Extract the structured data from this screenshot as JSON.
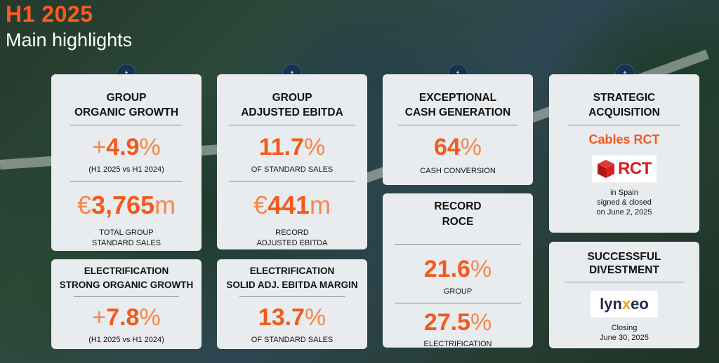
{
  "header": {
    "title": "H1 2025",
    "subtitle": "Main highlights"
  },
  "cards": {
    "organic_growth": {
      "title_line1": "GROUP",
      "title_line2": "ORGANIC GROWTH",
      "value1_prefix": "+",
      "value1": "4.9",
      "value1_unit": "%",
      "caption1": "(H1 2025 vs H1 2024)",
      "value2_prefix": "€",
      "value2": "3,765",
      "value2_unit": "m",
      "caption2_line1": "TOTAL GROUP",
      "caption2_line2": "STANDARD SALES"
    },
    "adjusted_ebitda": {
      "title_line1": "GROUP",
      "title_line2": "ADJUSTED EBITDA",
      "value1": "11.7",
      "value1_unit": "%",
      "caption1": "OF STANDARD SALES",
      "value2_prefix": "€",
      "value2": "441",
      "value2_unit": "m",
      "caption2_line1": "RECORD",
      "caption2_line2": "ADJUSTED EBITDA"
    },
    "cash_generation": {
      "title_line1": "EXCEPTIONAL",
      "title_line2": "CASH GENERATION",
      "value": "64",
      "value_unit": "%",
      "caption": "CASH CONVERSION"
    },
    "record_roce": {
      "title_line1": "RECORD",
      "title_line2": "ROCE",
      "value1": "21.6",
      "value1_unit": "%",
      "caption1": "GROUP",
      "value2": "27.5",
      "value2_unit": "%",
      "caption2": "ELECTRIFICATION"
    },
    "strategic_acquisition": {
      "title_line1": "STRATEGIC",
      "title_line2": "ACQUISITION",
      "company": "Cables RCT",
      "logo_text": "RCT",
      "caption_line1": "in Spain",
      "caption_line2": "signed & closed",
      "caption_line3": "on June 2, 2025"
    },
    "divestment": {
      "title_line1": "SUCCESSFUL",
      "title_line2": "DIVESTMENT",
      "logo_part1": "lyn",
      "logo_x": "x",
      "logo_part2": "eo",
      "caption_line1": "Closing",
      "caption_line2": "June 30, 2025"
    },
    "electrification_growth": {
      "title_line1": "ELECTRIFICATION",
      "title_line2": "STRONG ORGANIC GROWTH",
      "value_prefix": "+",
      "value": "7.8",
      "value_unit": "%",
      "caption": "(H1 2025 vs H1 2024)"
    },
    "electrification_margin": {
      "title_line1": "ELECTRIFICATION",
      "title_line2": "SOLID ADJ. EBITDA MARGIN",
      "value": "13.7",
      "value_unit": "%",
      "caption": "OF STANDARD SALES"
    }
  },
  "icons": {
    "up_arrow": "arrow-up-icon",
    "arrow_glyph": "↑"
  },
  "colors": {
    "accent": "#f25a1c",
    "accent_light": "#f7864a",
    "title_orange": "#ff5a1f",
    "navy": "#17344f",
    "card_bg": "#e9ecef"
  }
}
